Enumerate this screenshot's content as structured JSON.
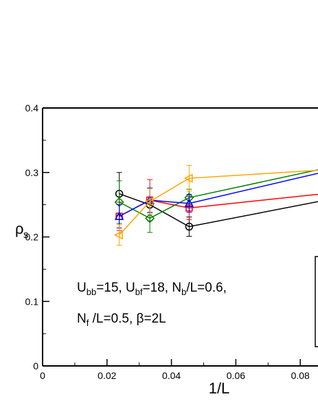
{
  "chart_data": {
    "type": "line",
    "xlabel": "1/L",
    "ylabel_main": "ρ",
    "ylabel_sub": "s",
    "xlim": [
      0,
      0.086
    ],
    "ylim": [
      0,
      0.4
    ],
    "x_ticks": [
      {
        "value": 0,
        "label": "0"
      },
      {
        "value": 0.02,
        "label": "0.02"
      },
      {
        "value": 0.04,
        "label": "0.04"
      },
      {
        "value": 0.06,
        "label": "0.06"
      },
      {
        "value": 0.08,
        "label": "0.08"
      }
    ],
    "y_ticks": [
      {
        "value": 0,
        "label": "0"
      },
      {
        "value": 0.1,
        "label": "0.1"
      },
      {
        "value": 0.2,
        "label": "0.2"
      },
      {
        "value": 0.3,
        "label": "0.3"
      },
      {
        "value": 0.4,
        "label": "0.4"
      }
    ],
    "grid": false,
    "series": [
      {
        "color": "#000000",
        "marker": "circle",
        "x": [
          0.0238,
          0.0333,
          0.0455,
          0.0909
        ],
        "y": [
          0.267,
          0.25,
          0.216,
          0.26
        ],
        "err": [
          0.033,
          0.012,
          0.015,
          0
        ]
      },
      {
        "color": "#ff0000",
        "marker": "square",
        "x": [
          0.0238,
          0.0333,
          0.0455,
          0.0909
        ],
        "y": [
          0.232,
          0.257,
          0.245,
          0.269
        ],
        "err": [
          0.022,
          0.032,
          0.018,
          0
        ]
      },
      {
        "color": "#008000",
        "marker": "diamond",
        "x": [
          0.0238,
          0.0333,
          0.0455,
          0.0909
        ],
        "y": [
          0.254,
          0.229,
          0.261,
          0.31
        ],
        "err": [
          0.033,
          0.022,
          0.013,
          0
        ]
      },
      {
        "color": "#0000ff",
        "marker": "triangle-up",
        "x": [
          0.0238,
          0.0333,
          0.0455,
          0.0909
        ],
        "y": [
          0.232,
          0.257,
          0.252,
          0.305
        ],
        "err": [
          0.018,
          0.019,
          0.014,
          0
        ]
      },
      {
        "color": "#ffa500",
        "marker": "triangle-left",
        "x": [
          0.0238,
          0.0333,
          0.0455,
          0.0909
        ],
        "y": [
          0.203,
          0.255,
          0.291,
          0.305
        ],
        "err": [
          0.016,
          0.02,
          0.02,
          0
        ]
      }
    ],
    "annotation": {
      "line1": [
        {
          "text": "U",
          "sub": false
        },
        {
          "text": "bb",
          "sub": true
        },
        {
          "text": "=15, U",
          "sub": false
        },
        {
          "text": "bf",
          "sub": true
        },
        {
          "text": "=18, N",
          "sub": false
        },
        {
          "text": "b",
          "sub": true
        },
        {
          "text": "/L=0.6,",
          "sub": false
        }
      ],
      "line2": [
        {
          "text": "N",
          "sub": false
        },
        {
          "text": "f",
          "sub": true
        },
        {
          "text": " /L=0.5, β=2L",
          "sub": false
        }
      ]
    }
  }
}
